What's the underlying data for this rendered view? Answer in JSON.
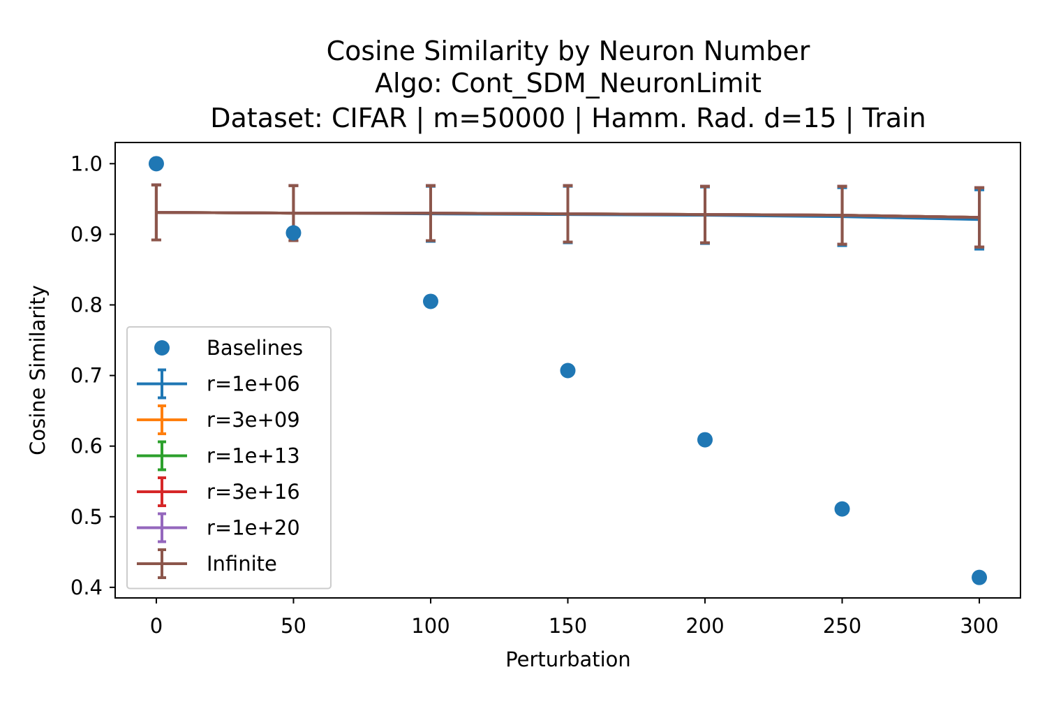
{
  "chart_data": {
    "type": "line",
    "title_lines": [
      "Cosine Similarity by Neuron Number",
      "Algo: Cont_SDM_NeuronLimit",
      "Dataset: CIFAR | m=50000 | Hamm. Rad. d=15 | Train"
    ],
    "xlabel": "Perturbation",
    "ylabel": "Cosine Similarity",
    "xlim": [
      -15,
      315
    ],
    "ylim": [
      0.385,
      1.03
    ],
    "x_ticks": [
      0,
      50,
      100,
      150,
      200,
      250,
      300
    ],
    "y_ticks": [
      0.4,
      0.5,
      0.6,
      0.7,
      0.8,
      0.9,
      1.0
    ],
    "grid": false,
    "legend_position": "lower-left",
    "baselines": {
      "name": "Baselines",
      "color": "#1f77b4",
      "x": [
        0,
        50,
        100,
        150,
        200,
        250,
        300
      ],
      "y": [
        1.0,
        0.902,
        0.805,
        0.707,
        0.609,
        0.511,
        0.414
      ]
    },
    "series": [
      {
        "name": "r=1e+06",
        "color": "#1f77b4",
        "x": [
          0,
          50,
          100,
          150,
          200,
          250,
          300
        ],
        "y": [
          0.931,
          0.93,
          0.929,
          0.928,
          0.927,
          0.925,
          0.921
        ],
        "err": [
          0.039,
          0.039,
          0.039,
          0.04,
          0.04,
          0.041,
          0.042
        ]
      },
      {
        "name": "r=3e+09",
        "color": "#ff7f0e",
        "x": [
          0,
          50,
          100,
          150,
          200,
          250,
          300
        ],
        "y": [
          0.931,
          0.93,
          0.93,
          0.929,
          0.928,
          0.927,
          0.924
        ],
        "err": [
          0.039,
          0.039,
          0.039,
          0.04,
          0.04,
          0.041,
          0.042
        ]
      },
      {
        "name": "r=1e+13",
        "color": "#2ca02c",
        "x": [
          0,
          50,
          100,
          150,
          200,
          250,
          300
        ],
        "y": [
          0.931,
          0.93,
          0.93,
          0.929,
          0.928,
          0.927,
          0.924
        ],
        "err": [
          0.039,
          0.039,
          0.039,
          0.04,
          0.04,
          0.041,
          0.042
        ]
      },
      {
        "name": "r=3e+16",
        "color": "#d62728",
        "x": [
          0,
          50,
          100,
          150,
          200,
          250,
          300
        ],
        "y": [
          0.931,
          0.93,
          0.93,
          0.929,
          0.928,
          0.927,
          0.924
        ],
        "err": [
          0.039,
          0.039,
          0.039,
          0.04,
          0.04,
          0.041,
          0.042
        ]
      },
      {
        "name": "r=1e+20",
        "color": "#9467bd",
        "x": [
          0,
          50,
          100,
          150,
          200,
          250,
          300
        ],
        "y": [
          0.931,
          0.93,
          0.93,
          0.929,
          0.928,
          0.927,
          0.924
        ],
        "err": [
          0.039,
          0.039,
          0.039,
          0.04,
          0.04,
          0.041,
          0.042
        ]
      },
      {
        "name": "Infinite",
        "color": "#8c564b",
        "x": [
          0,
          50,
          100,
          150,
          200,
          250,
          300
        ],
        "y": [
          0.931,
          0.93,
          0.93,
          0.929,
          0.928,
          0.927,
          0.924
        ],
        "err": [
          0.039,
          0.039,
          0.039,
          0.04,
          0.04,
          0.041,
          0.042
        ]
      }
    ]
  }
}
